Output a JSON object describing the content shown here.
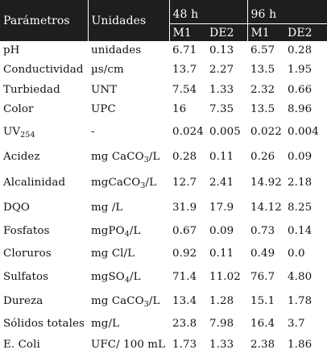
{
  "header": {
    "parameters": "Parámetros",
    "units": "Unidades",
    "group_48": "48 h",
    "group_96": "96 h",
    "m1_48": "M1",
    "de2_48": "DE2",
    "m1_96": "M1",
    "de2_96": "DE2"
  },
  "rows": [
    {
      "param": "pH",
      "param_sub": "",
      "unit_pre": "unidades",
      "unit_sub": "",
      "unit_post": "",
      "m1_48": "6.71",
      "de2_48": "0.13",
      "m1_96": "6.57",
      "de2_96": "0.28"
    },
    {
      "param": "Conductividad",
      "param_sub": "",
      "unit_pre": "µs/cm",
      "unit_sub": "",
      "unit_post": "",
      "m1_48": "13.7",
      "de2_48": "2.27",
      "m1_96": "13.5",
      "de2_96": "1.95"
    },
    {
      "param": "Turbiedad",
      "param_sub": "",
      "unit_pre": "UNT",
      "unit_sub": "",
      "unit_post": "",
      "m1_48": "7.54",
      "de2_48": "1.33",
      "m1_96": "2.32",
      "de2_96": "0.66"
    },
    {
      "param": "Color",
      "param_sub": "",
      "unit_pre": "UPC",
      "unit_sub": "",
      "unit_post": "",
      "m1_48": "16",
      "de2_48": "7.35",
      "m1_96": "13.5",
      "de2_96": "8.96"
    },
    {
      "param": "UV",
      "param_sub": "254",
      "unit_pre": "-",
      "unit_sub": "",
      "unit_post": "",
      "m1_48": "0.024",
      "de2_48": "0.005",
      "m1_96": "0.022",
      "de2_96": "0.004"
    },
    {
      "param": "Acidez",
      "param_sub": "",
      "unit_pre": "mg CaCO",
      "unit_sub": "3",
      "unit_post": "/L",
      "m1_48": "0.28",
      "de2_48": "0.11",
      "m1_96": "0.26",
      "de2_96": "0.09"
    },
    {
      "param": "Alcalinidad",
      "param_sub": "",
      "unit_pre": "mgCaCO",
      "unit_sub": "3",
      "unit_post": "/L",
      "m1_48": "12.7",
      "de2_48": "2.41",
      "m1_96": "14.92",
      "de2_96": "2.18"
    },
    {
      "param": "DQO",
      "param_sub": "",
      "unit_pre": "mg /L",
      "unit_sub": "",
      "unit_post": "",
      "m1_48": "31.9",
      "de2_48": "17.9",
      "m1_96": "14.12",
      "de2_96": "8.25"
    },
    {
      "param": "Fosfatos",
      "param_sub": "",
      "unit_pre": "mgPO",
      "unit_sub": "4",
      "unit_post": "/L",
      "m1_48": "0.67",
      "de2_48": "0.09",
      "m1_96": "0.73",
      "de2_96": "0.14"
    },
    {
      "param": "Cloruros",
      "param_sub": "",
      "unit_pre": "mg Cl/L",
      "unit_sub": "",
      "unit_post": "",
      "m1_48": "0.92",
      "de2_48": "0.11",
      "m1_96": "0.49",
      "de2_96": "0.0"
    },
    {
      "param": "Sulfatos",
      "param_sub": "",
      "unit_pre": "mgSO",
      "unit_sub": "4",
      "unit_post": "/L",
      "m1_48": "71.4",
      "de2_48": "11.02",
      "m1_96": "76.7",
      "de2_96": "4.80"
    },
    {
      "param": "Dureza",
      "param_sub": "",
      "unit_pre": "mg CaCO",
      "unit_sub": "3",
      "unit_post": "/L",
      "m1_48": "13.4",
      "de2_48": "1.28",
      "m1_96": "15.1",
      "de2_96": "1.78"
    },
    {
      "param": "Sólidos totales",
      "param_sub": "",
      "unit_pre": "mg/L",
      "unit_sub": "",
      "unit_post": "",
      "m1_48": "23.8",
      "de2_48": "7.98",
      "m1_96": "16.4",
      "de2_96": "3.7"
    },
    {
      "param": "E. Coli",
      "param_sub": "",
      "unit_pre": "UFC/ 100 mL",
      "unit_sub": "",
      "unit_post": "",
      "m1_48": "1.73",
      "de2_48": "1.33",
      "m1_96": "2.38",
      "de2_96": "1.86"
    }
  ]
}
